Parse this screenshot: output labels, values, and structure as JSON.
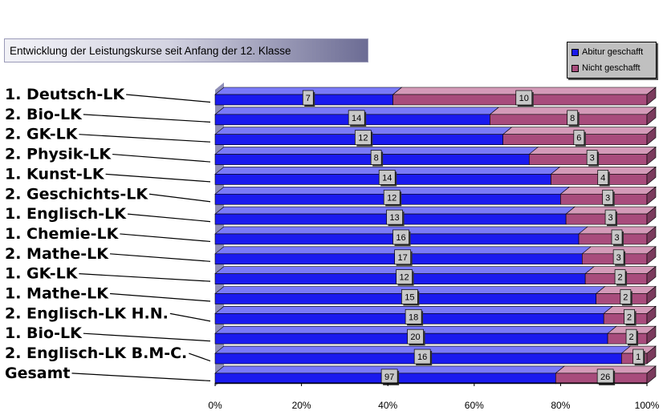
{
  "title": "Entwicklung der Leistungskurse seit Anfang der 12. Klasse",
  "colors": {
    "abitur": "#1a1aee",
    "nicht": "#a84c7c",
    "floor": "#8f8fb8",
    "label_box": "#c8c8c8"
  },
  "chart_data": {
    "type": "bar",
    "orientation": "horizontal",
    "stacked_percent": true,
    "title": "Entwicklung der Leistungskurse seit Anfang der 12. Klasse",
    "categories": [
      "1. Deutsch-LK",
      "2. Bio-LK",
      "2. GK-LK",
      "2. Physik-LK",
      "1. Kunst-LK",
      "2. Geschichts-LK",
      "1. Englisch-LK",
      "1. Chemie-LK",
      "2. Mathe-LK",
      "1. GK-LK",
      "1. Mathe-LK",
      "2. Englisch-LK H.N.",
      "1. Bio-LK",
      "2. Englisch-LK B.M-C.",
      "Gesamt"
    ],
    "series": [
      {
        "name": "Abitur geschafft",
        "values": [
          7,
          14,
          12,
          8,
          14,
          12,
          13,
          16,
          17,
          12,
          15,
          18,
          20,
          16,
          97
        ]
      },
      {
        "name": "Nicht geschafft",
        "values": [
          10,
          8,
          6,
          3,
          4,
          3,
          3,
          3,
          3,
          2,
          2,
          2,
          2,
          1,
          26
        ]
      }
    ],
    "x_ticks": [
      "0%",
      "20%",
      "40%",
      "60%",
      "80%",
      "100%"
    ],
    "xlim": [
      0,
      100
    ],
    "legend_position": "top-right",
    "grid": false
  }
}
